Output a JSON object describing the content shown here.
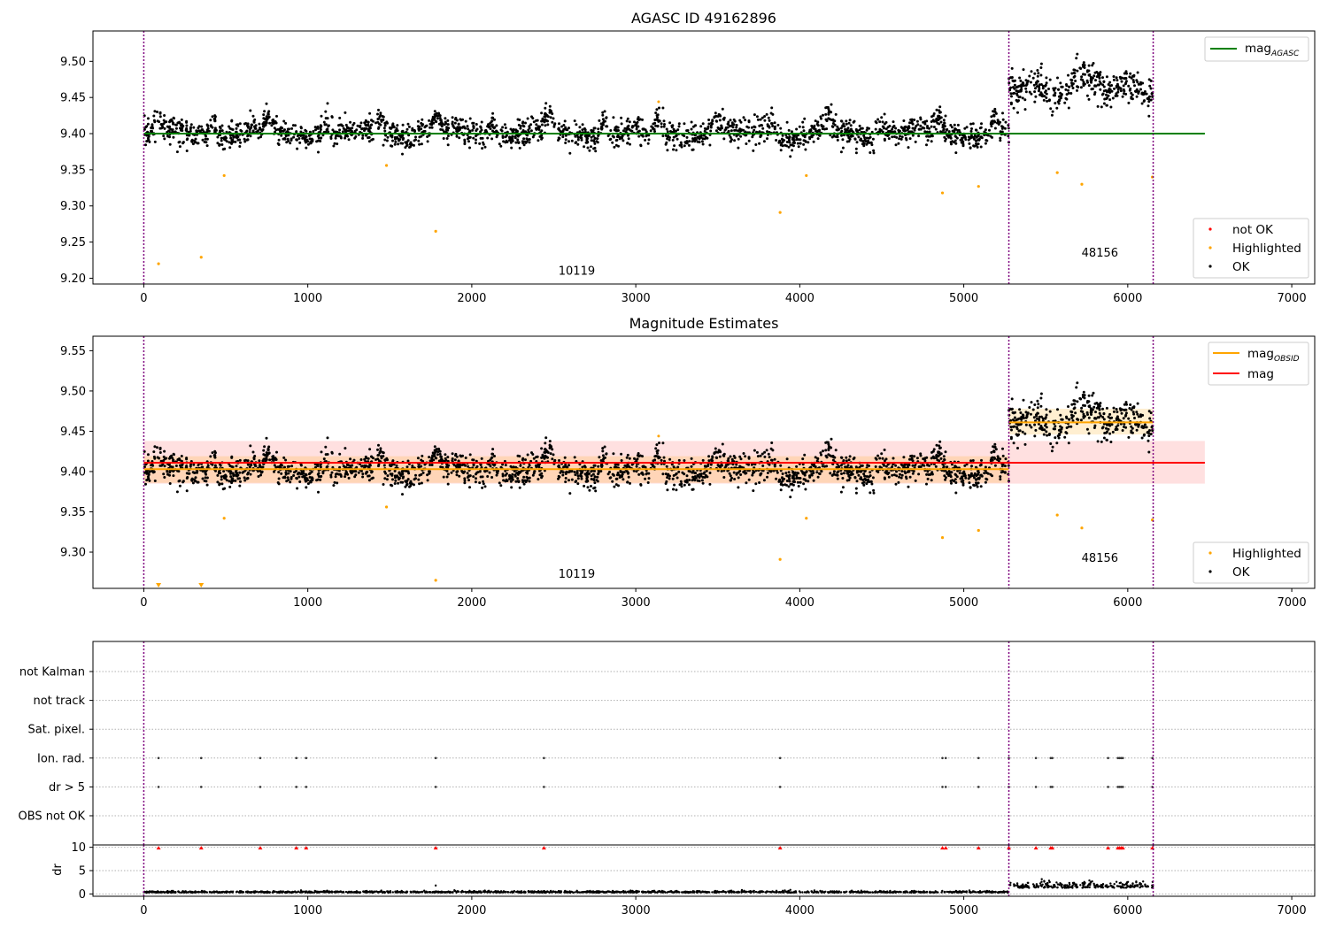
{
  "chart_data": [
    {
      "type": "scatter",
      "title": "AGASC ID 49162896",
      "xlabel": "",
      "ylabel": "",
      "xlim": [
        -310,
        7140
      ],
      "ylim": [
        9.192,
        9.542
      ],
      "xticks": [
        0,
        1000,
        2000,
        3000,
        4000,
        5000,
        6000,
        7000
      ],
      "yticks": [
        9.2,
        9.25,
        9.3,
        9.35,
        9.4,
        9.45,
        9.5
      ],
      "ytick_labels": [
        "9.20",
        "9.25",
        "9.30",
        "9.35",
        "9.40",
        "9.45",
        "9.50"
      ],
      "grid": false,
      "observation_boundaries": [
        0,
        5275,
        6155
      ],
      "observation_labels": [
        {
          "text": "10119",
          "x": 2640,
          "y": 9.205
        },
        {
          "text": "48156",
          "x": 5830,
          "y": 9.23
        }
      ],
      "segments": [
        {
          "x_start": 0,
          "x_end": 5275,
          "mean": 9.4
        },
        {
          "x_start": 5275,
          "x_end": 6155,
          "mean": 9.465
        }
      ],
      "reference_lines": [
        {
          "name": "mag_AGASC",
          "y": 9.4,
          "x_start": 0,
          "x_end": 6470,
          "color": "#008000"
        }
      ],
      "highlighted_outliers": [
        {
          "x": 90,
          "y": 9.22
        },
        {
          "x": 350,
          "y": 9.229
        },
        {
          "x": 490,
          "y": 9.342
        },
        {
          "x": 1480,
          "y": 9.356
        },
        {
          "x": 1780,
          "y": 9.265
        },
        {
          "x": 3880,
          "y": 9.291
        },
        {
          "x": 4040,
          "y": 9.342
        },
        {
          "x": 4870,
          "y": 9.318
        },
        {
          "x": 5090,
          "y": 9.327
        },
        {
          "x": 5570,
          "y": 9.346
        },
        {
          "x": 5720,
          "y": 9.33
        },
        {
          "x": 6150,
          "y": 9.34
        }
      ],
      "legends": [
        {
          "location": "upper right",
          "entries": [
            {
              "label": "mag",
              "subscript": "AGASC",
              "color": "#008000",
              "marker": "line"
            }
          ]
        },
        {
          "location": "lower right",
          "entries": [
            {
              "label": "not OK",
              "color": "#ff0000",
              "marker": "dot"
            },
            {
              "label": "Highlighted",
              "color": "#ffa500",
              "marker": "dot"
            },
            {
              "label": "OK",
              "color": "#000000",
              "marker": "dot"
            }
          ]
        }
      ]
    },
    {
      "type": "scatter",
      "title": "Magnitude Estimates",
      "xlabel": "",
      "ylabel": "",
      "xlim": [
        -310,
        7140
      ],
      "ylim": [
        9.255,
        9.568
      ],
      "xticks": [
        0,
        1000,
        2000,
        3000,
        4000,
        5000,
        6000,
        7000
      ],
      "yticks": [
        9.3,
        9.35,
        9.4,
        9.45,
        9.5,
        9.55
      ],
      "ytick_labels": [
        "9.30",
        "9.35",
        "9.40",
        "9.45",
        "9.50",
        "9.55"
      ],
      "grid": false,
      "observation_boundaries": [
        0,
        5275,
        6155
      ],
      "observation_labels": [
        {
          "text": "10119",
          "x": 2640,
          "y": 9.268
        },
        {
          "text": "48156",
          "x": 5830,
          "y": 9.288
        }
      ],
      "segments": [
        {
          "x_start": 0,
          "x_end": 5275,
          "mean": 9.4
        },
        {
          "x_start": 5275,
          "x_end": 6155,
          "mean": 9.465
        }
      ],
      "reference_lines": [
        {
          "name": "mag",
          "y": 9.411,
          "x_start": 0,
          "x_end": 6470,
          "color": "#ff0000",
          "band": [
            9.385,
            9.438
          ]
        },
        {
          "name": "mag_OBSID",
          "segments": [
            {
              "x_start": 0,
              "x_end": 5275,
              "y": 9.403,
              "band": [
                9.386,
                9.419
              ]
            },
            {
              "x_start": 5275,
              "x_end": 6155,
              "y": 9.461,
              "band": [
                9.446,
                9.478
              ]
            }
          ],
          "color": "#ffa500"
        }
      ],
      "highlighted_outliers": [
        {
          "x": 490,
          "y": 9.342
        },
        {
          "x": 1480,
          "y": 9.356
        },
        {
          "x": 1780,
          "y": 9.265
        },
        {
          "x": 3880,
          "y": 9.291
        },
        {
          "x": 4040,
          "y": 9.342
        },
        {
          "x": 4870,
          "y": 9.318
        },
        {
          "x": 5090,
          "y": 9.327
        },
        {
          "x": 5570,
          "y": 9.346
        },
        {
          "x": 5720,
          "y": 9.33
        },
        {
          "x": 6150,
          "y": 9.34
        }
      ],
      "clipped_markers": [
        {
          "x": 90
        },
        {
          "x": 350
        }
      ],
      "legends": [
        {
          "location": "upper right",
          "entries": [
            {
              "label": "mag",
              "subscript": "OBSID",
              "color": "#ffa500",
              "marker": "line"
            },
            {
              "label": "mag",
              "color": "#ff0000",
              "marker": "line"
            }
          ]
        },
        {
          "location": "lower right",
          "entries": [
            {
              "label": "Highlighted",
              "color": "#ffa500",
              "marker": "dot"
            },
            {
              "label": "OK",
              "color": "#000000",
              "marker": "dot"
            }
          ]
        }
      ]
    },
    {
      "type": "scatter",
      "title": "",
      "xlabel": "",
      "ylabel": "",
      "xlim": [
        -310,
        7140
      ],
      "grid": true,
      "observation_boundaries": [
        0,
        5275,
        6155
      ],
      "flag_rows": [
        "not Kalman",
        "not track",
        "Sat. pixel.",
        "Ion. rad.",
        "dr > 5",
        "OBS not OK"
      ],
      "flag_events": {
        "Ion. rad.": [
          90,
          350,
          710,
          930,
          990,
          1780,
          2440,
          3880,
          4870,
          4890,
          5090,
          5275,
          5440,
          5530,
          5540,
          5880,
          5940,
          5950,
          5960,
          5970,
          6150
        ],
        "dr > 5": [
          90,
          350,
          710,
          930,
          990,
          1780,
          2440,
          3880,
          4870,
          4890,
          5090,
          5275,
          5440,
          5530,
          5540,
          5880,
          5940,
          5950,
          5960,
          5970,
          6150
        ]
      }
    },
    {
      "type": "scatter",
      "title": "",
      "xlabel": "",
      "ylabel": "dr",
      "xlim": [
        -310,
        7140
      ],
      "ylim": [
        -0.5,
        10.5
      ],
      "xticks": [
        0,
        1000,
        2000,
        3000,
        4000,
        5000,
        6000,
        7000
      ],
      "yticks": [
        0,
        5,
        10
      ],
      "ytick_labels": [
        "0",
        "5",
        "10"
      ],
      "grid": true,
      "observation_boundaries": [
        0,
        5275,
        6155
      ],
      "segments": [
        {
          "x_start": 0,
          "x_end": 5275,
          "mean": 0.3
        },
        {
          "x_start": 5275,
          "x_end": 6155,
          "mean": 1.3
        }
      ],
      "clipped_markers": [
        90,
        350,
        710,
        930,
        990,
        1780,
        2440,
        3880,
        4870,
        4890,
        5090,
        5275,
        5440,
        5530,
        5540,
        5880,
        5940,
        5950,
        5960,
        5970,
        6150
      ]
    }
  ]
}
